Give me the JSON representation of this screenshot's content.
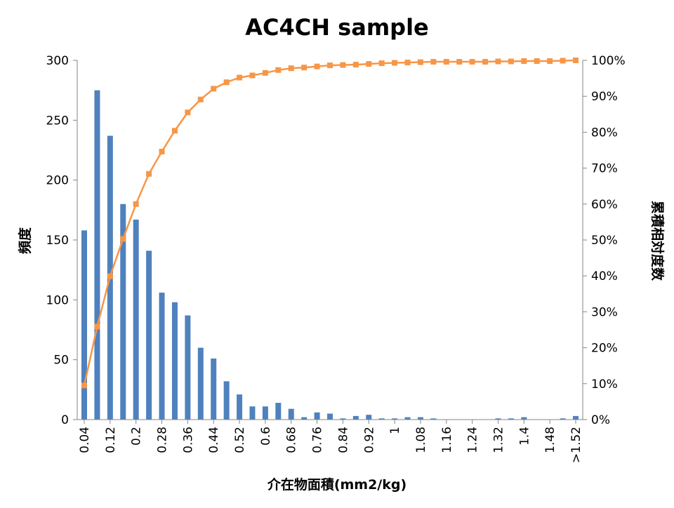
{
  "chart_data": {
    "type": "bar",
    "title": "AC4CH sample",
    "xlabel": "介在物面積(mm2/kg)",
    "ylabel": "頻度",
    "y2label": "累積相対度数",
    "ylim": [
      0,
      300
    ],
    "yticks": [
      0,
      50,
      100,
      150,
      200,
      250,
      300
    ],
    "y2lim": [
      0,
      100
    ],
    "y2ticks": [
      "0%",
      "10%",
      "20%",
      "30%",
      "40%",
      "50%",
      "60%",
      "70%",
      "80%",
      "90%",
      "100%"
    ],
    "categories": [
      "0.04",
      "0.08",
      "0.12",
      "0.16",
      "0.2",
      "0.24",
      "0.28",
      "0.32",
      "0.36",
      "0.4",
      "0.44",
      "0.48",
      "0.52",
      "0.56",
      "0.6",
      "0.64",
      "0.68",
      "0.72",
      "0.76",
      "0.8",
      "0.84",
      "0.88",
      "0.92",
      "0.96",
      "1",
      "1.04",
      "1.08",
      "1.12",
      "1.16",
      "1.2",
      "1.24",
      "1.28",
      "1.32",
      "1.36",
      "1.4",
      "1.44",
      "1.48",
      "1.52",
      ">1.52"
    ],
    "x_tick_labels": [
      "0.04",
      "",
      "0.12",
      "",
      "0.2",
      "",
      "0.28",
      "",
      "0.36",
      "",
      "0.44",
      "",
      "0.52",
      "",
      "0.6",
      "",
      "0.68",
      "",
      "0.76",
      "",
      "0.84",
      "",
      "0.92",
      "",
      "1",
      "",
      "1.08",
      "",
      "1.16",
      "",
      "1.24",
      "",
      "1.32",
      "",
      "1.4",
      "",
      "1.48",
      "",
      ">1.52"
    ],
    "series": [
      {
        "kind": "bar",
        "color": "#4F81BD",
        "values": [
          158,
          275,
          237,
          180,
          167,
          141,
          106,
          98,
          87,
          60,
          51,
          32,
          21,
          11,
          11,
          14,
          9,
          2,
          6,
          5,
          1,
          3,
          4,
          1,
          1,
          2,
          2,
          1,
          0,
          0,
          0,
          0,
          1,
          1,
          2,
          0,
          0,
          1,
          3
        ]
      },
      {
        "kind": "line",
        "axis": "right",
        "color": "#F79646",
        "marker": "square",
        "values": [
          9.5,
          25.9,
          39.9,
          50.3,
          60.0,
          68.4,
          74.6,
          80.4,
          85.5,
          89.1,
          92.1,
          93.9,
          95.2,
          95.8,
          96.5,
          97.3,
          97.8,
          98.0,
          98.3,
          98.6,
          98.7,
          98.8,
          99.0,
          99.2,
          99.3,
          99.4,
          99.5,
          99.6,
          99.6,
          99.6,
          99.6,
          99.6,
          99.7,
          99.7,
          99.8,
          99.8,
          99.8,
          99.9,
          100.0
        ]
      }
    ],
    "grid": false,
    "legend": "none"
  }
}
